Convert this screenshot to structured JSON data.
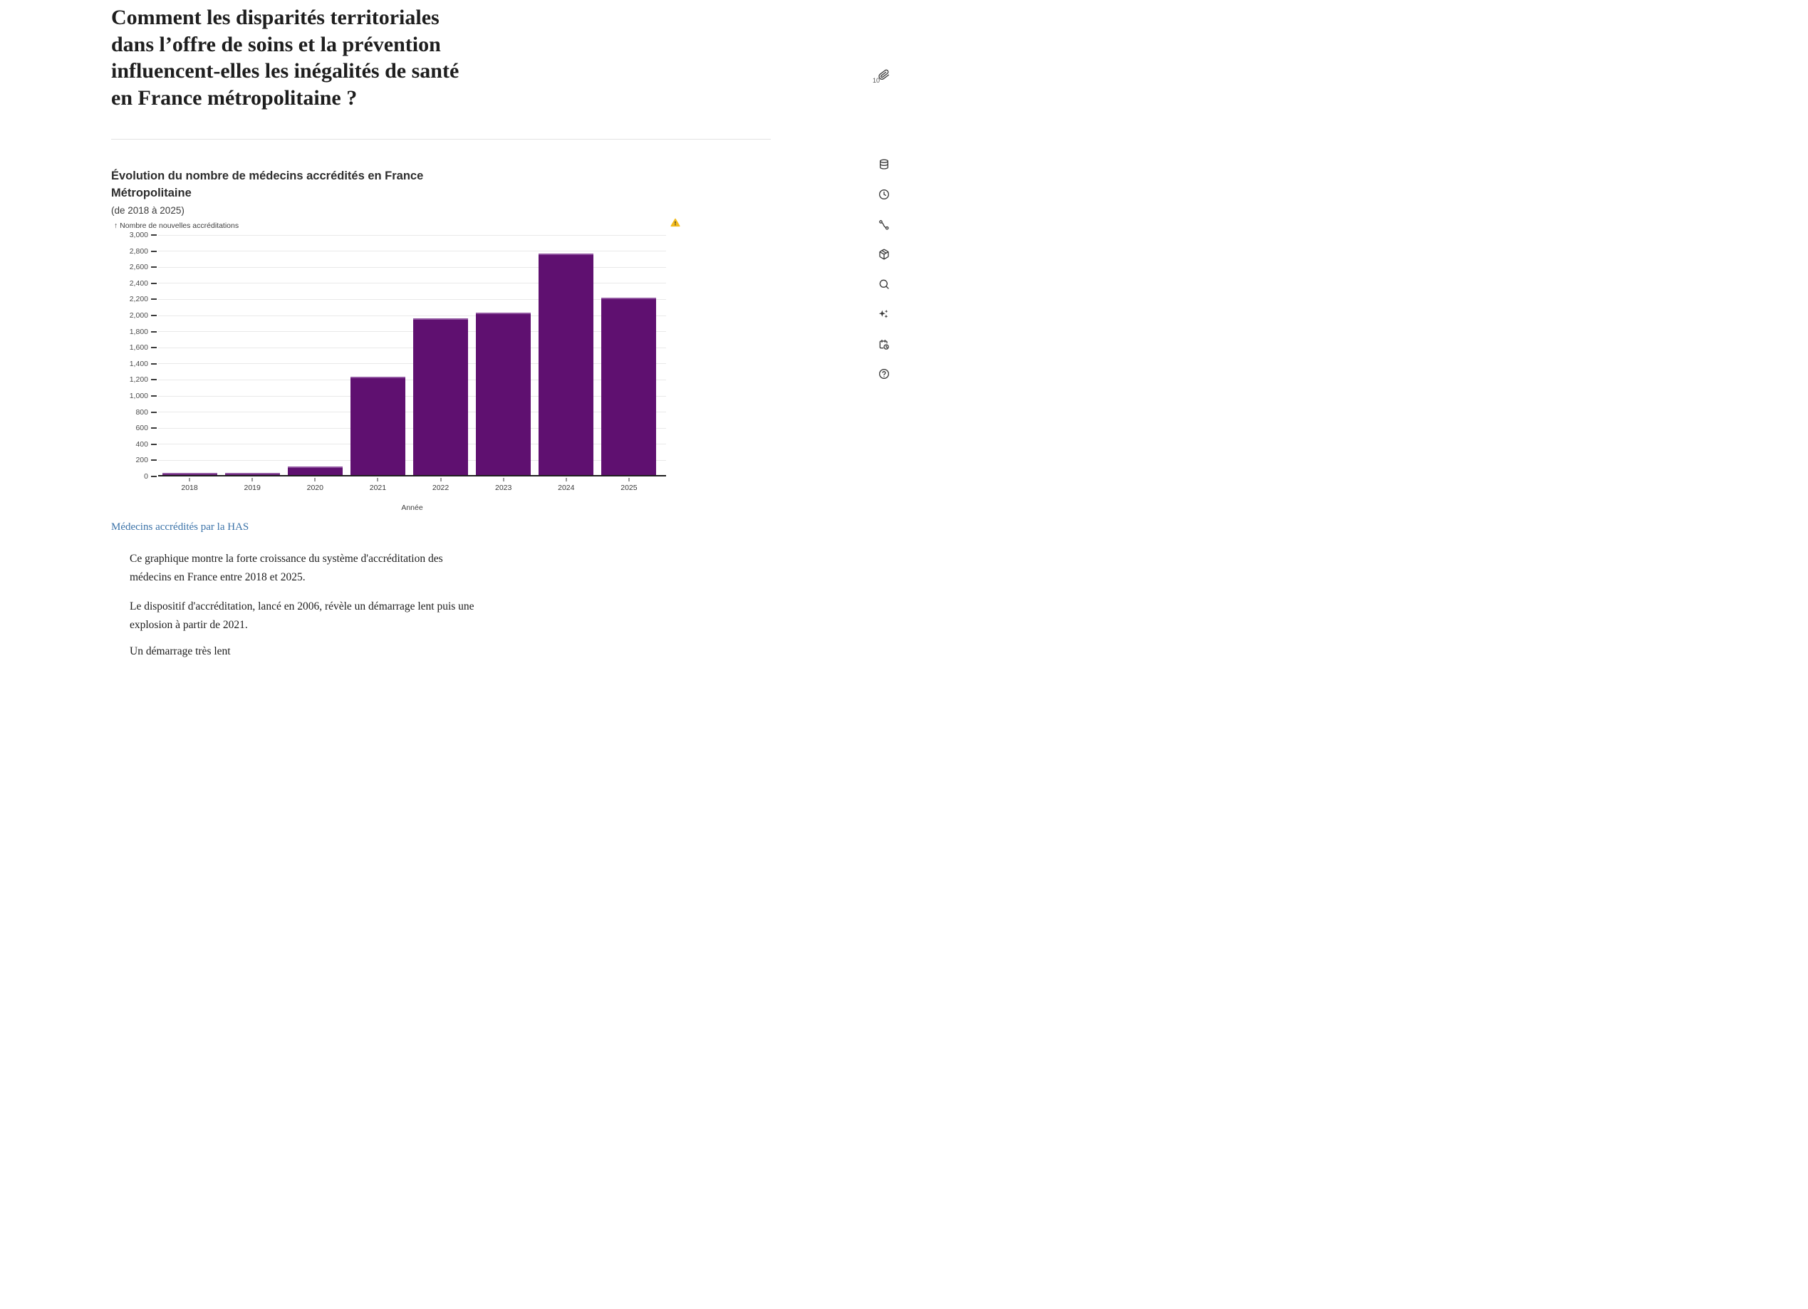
{
  "page": {
    "title_lines": [
      "Comment les disparités territoriales",
      "dans l’offre de soins et la prévention",
      "influencent-elles les inégalités de santé",
      "en France métropolitaine ?"
    ]
  },
  "chart": {
    "title_lines": [
      "Évolution du nombre de médecins accrédités en France",
      "Métropolitaine"
    ],
    "subtitle": "(de 2018 à 2025)",
    "y_axis_title": "↑ Nombre de nouvelles accréditations",
    "x_axis_title": "Année",
    "warning_icon": "warning-triangle",
    "colors": {
      "bar": "#5f1070",
      "bar_top_edge": "#9257a1",
      "grid": "#e9e9e9",
      "axis": "#1f1f1f",
      "warning": "#f4bc1c"
    }
  },
  "chart_data": {
    "type": "bar",
    "title": "Évolution du nombre de médecins accrédités en France Métropolitaine",
    "subtitle": "(de 2018 à 2025)",
    "xlabel": "Année",
    "ylabel": "Nombre de nouvelles accréditations",
    "categories": [
      "2018",
      "2019",
      "2020",
      "2021",
      "2022",
      "2023",
      "2024",
      "2025"
    ],
    "values": [
      25,
      30,
      105,
      1225,
      1950,
      2020,
      2750,
      2200
    ],
    "ylim": [
      0,
      3000
    ],
    "ytick_step": 200,
    "grid": true,
    "legend": false,
    "bar_color": "#5f1070"
  },
  "source_link": {
    "label": "Médecins accrédités par la HAS"
  },
  "paragraphs": [
    {
      "lines": [
        "Ce graphique montre la forte croissance du système d'accréditation des",
        "médecins en France entre 2018 et 2025."
      ]
    },
    {
      "lines": [
        "Le dispositif d'accréditation, lancé en 2006, révèle un démarrage lent puis une",
        "explosion à partir de 2021."
      ]
    },
    {
      "lines": [
        "Un démarrage très lent"
      ]
    }
  ],
  "sidebar": {
    "attachment_count": "10",
    "icons": [
      "paperclip",
      "database",
      "clock",
      "route",
      "package",
      "search",
      "sparkles",
      "calendar-clock",
      "help"
    ]
  }
}
